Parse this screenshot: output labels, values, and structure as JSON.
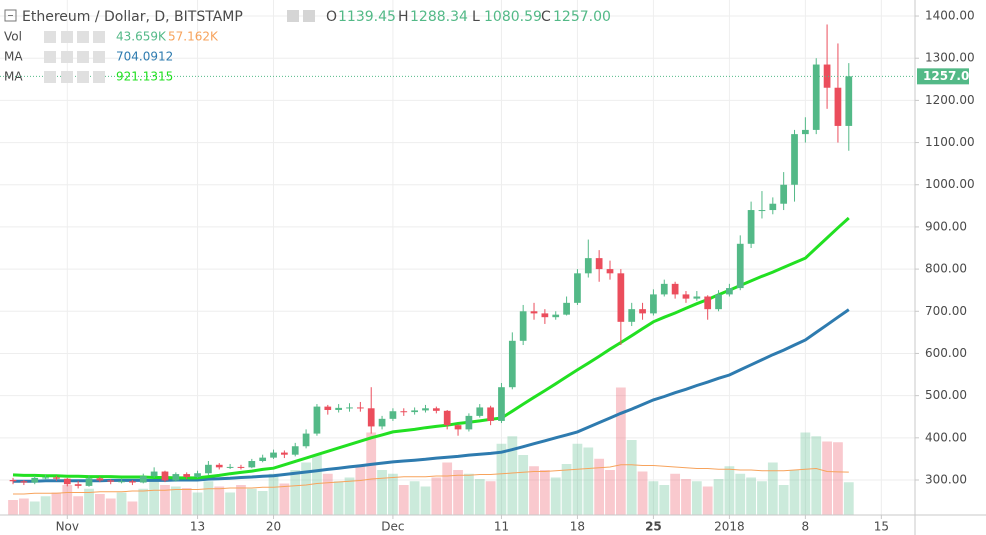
{
  "chart_data": {
    "type": "candlestick",
    "title": "Ethereum / Dollar, D, BITSTAMP",
    "ohlc_prefixes": [
      "O",
      "H",
      "L",
      "C"
    ],
    "close_label": "1257.00",
    "color_up": "#53b987",
    "color_down": "#eb4d5c",
    "open": [
      300,
      297,
      294,
      305,
      306,
      303,
      290,
      286,
      304,
      299,
      296,
      297,
      294,
      309,
      320,
      299,
      314,
      307,
      316,
      336,
      330,
      331,
      330,
      345,
      353,
      365,
      360,
      380,
      410,
      474,
      466,
      471,
      472,
      470,
      427,
      445,
      463,
      461,
      465,
      470,
      464,
      430,
      420,
      452,
      472,
      440,
      520,
      630,
      700,
      695,
      686,
      692,
      720,
      790,
      826,
      800,
      790,
      675,
      705,
      695,
      740,
      765,
      740,
      730,
      735,
      705,
      740,
      755,
      860,
      940,
      940,
      955,
      1000,
      1120,
      1130,
      1285,
      1230,
      1139.45
    ],
    "high": [
      305,
      300,
      310,
      312,
      310,
      305,
      298,
      310,
      308,
      302,
      303,
      300,
      315,
      330,
      322,
      318,
      318,
      322,
      345,
      340,
      338,
      336,
      350,
      360,
      372,
      370,
      388,
      420,
      480,
      478,
      480,
      482,
      485,
      520,
      452,
      470,
      470,
      472,
      478,
      474,
      466,
      432,
      458,
      480,
      476,
      530,
      650,
      715,
      720,
      705,
      700,
      735,
      800,
      870,
      845,
      820,
      800,
      720,
      720,
      752,
      775,
      770,
      748,
      748,
      738,
      750,
      765,
      880,
      960,
      985,
      970,
      1030,
      1130,
      1160,
      1300,
      1380,
      1335,
      1288.34
    ],
    "low": [
      290,
      288,
      290,
      300,
      298,
      285,
      280,
      284,
      295,
      290,
      292,
      288,
      292,
      305,
      295,
      296,
      302,
      305,
      312,
      325,
      326,
      325,
      328,
      342,
      350,
      352,
      356,
      375,
      405,
      455,
      460,
      462,
      462,
      410,
      420,
      440,
      452,
      455,
      460,
      458,
      420,
      405,
      415,
      448,
      430,
      435,
      515,
      620,
      680,
      670,
      680,
      690,
      715,
      780,
      770,
      775,
      620,
      665,
      680,
      690,
      735,
      730,
      720,
      725,
      680,
      700,
      735,
      750,
      850,
      920,
      930,
      940,
      960,
      1100,
      1120,
      1180,
      1100,
      1080.59
    ],
    "close": [
      297,
      294,
      305,
      306,
      303,
      290,
      286,
      304,
      299,
      296,
      297,
      294,
      309,
      320,
      299,
      314,
      307,
      316,
      336,
      330,
      331,
      330,
      345,
      353,
      365,
      360,
      380,
      410,
      474,
      466,
      471,
      472,
      470,
      427,
      445,
      463,
      461,
      465,
      470,
      464,
      430,
      420,
      452,
      472,
      440,
      520,
      630,
      700,
      695,
      686,
      692,
      720,
      790,
      826,
      800,
      790,
      675,
      705,
      695,
      740,
      765,
      740,
      730,
      735,
      705,
      740,
      755,
      860,
      940,
      940,
      955,
      1000,
      1120,
      1130,
      1285,
      1230,
      1139.45,
      1257
    ],
    "ylim": [
      217,
      1438
    ],
    "yticks": [
      {
        "value": 300,
        "label": "300.00"
      },
      {
        "value": 400,
        "label": "400.00"
      },
      {
        "value": 500,
        "label": "500.00"
      },
      {
        "value": 600,
        "label": "600.00"
      },
      {
        "value": 700,
        "label": "700.00"
      },
      {
        "value": 800,
        "label": "800.00"
      },
      {
        "value": 900,
        "label": "900.00"
      },
      {
        "value": 1000,
        "label": "1000.00"
      },
      {
        "value": 1100,
        "label": "1100.00"
      },
      {
        "value": 1200,
        "label": "1200.00"
      },
      {
        "value": 1300,
        "label": "1300.00"
      },
      {
        "value": 1400,
        "label": "1400.00"
      }
    ],
    "xlim": [
      -1.2,
      83.1
    ],
    "xticks": [
      {
        "value": 5,
        "label": "Nov"
      },
      {
        "value": 17,
        "label": "13"
      },
      {
        "value": 24,
        "label": "20"
      },
      {
        "value": 35,
        "label": "Dec"
      },
      {
        "value": 45,
        "label": "11"
      },
      {
        "value": 52,
        "label": "18"
      },
      {
        "value": 59,
        "label": "25"
      },
      {
        "value": 66,
        "label": "2018"
      },
      {
        "value": 73,
        "label": "8"
      },
      {
        "value": 80,
        "label": "15"
      }
    ],
    "grid": true,
    "volume": {
      "name": "Vol",
      "values": [
        20,
        22,
        18,
        25,
        30,
        40,
        25,
        35,
        28,
        22,
        30,
        18,
        35,
        45,
        40,
        38,
        36,
        30,
        45,
        38,
        30,
        40,
        35,
        32,
        55,
        42,
        60,
        70,
        80,
        55,
        45,
        50,
        65,
        110,
        60,
        55,
        40,
        45,
        38,
        50,
        70,
        60,
        55,
        48,
        45,
        95,
        105,
        80,
        65,
        60,
        50,
        68,
        95,
        90,
        75,
        60,
        170,
        100,
        58,
        45,
        40,
        55,
        48,
        45,
        38,
        48,
        65,
        55,
        50,
        45,
        70,
        40,
        60,
        110,
        105,
        98,
        97,
        43.659
      ],
      "value_label": "43.659K",
      "ma": {
        "color": "#f7a35c",
        "value_label": "57.162K",
        "values": [
          28,
          28,
          29,
          29,
          29,
          30,
          30,
          30,
          31,
          31,
          31,
          32,
          32,
          33,
          33,
          34,
          34,
          34,
          35,
          35,
          36,
          36,
          36,
          37,
          37,
          38,
          39,
          40,
          42,
          43,
          44,
          45,
          46,
          48,
          49,
          50,
          51,
          51,
          51,
          52,
          52,
          53,
          53,
          54,
          54,
          55,
          56,
          57,
          58,
          58,
          59,
          60,
          61,
          62,
          63,
          64,
          67,
          67,
          66,
          66,
          65,
          64,
          63,
          62,
          62,
          61,
          61,
          60,
          60,
          59,
          59,
          59,
          60,
          61,
          62,
          58,
          57.5,
          57.162
        ]
      }
    },
    "series": [
      {
        "name": "MA",
        "color": "#2e7baf",
        "values": [
          297,
          297,
          297,
          298,
          298,
          298,
          298,
          298,
          298,
          299,
          299,
          299,
          299,
          299,
          299,
          300,
          300,
          300,
          302,
          303,
          304,
          306,
          307,
          309,
          310,
          313,
          316,
          319,
          322,
          325,
          328,
          331,
          334,
          337,
          340,
          343,
          345,
          347,
          349,
          352,
          354,
          356,
          359,
          361,
          363,
          366,
          372,
          379,
          386,
          393,
          400,
          407,
          414,
          425,
          436,
          447,
          458,
          468,
          479,
          490,
          498,
          507,
          515,
          524,
          532,
          541,
          549,
          561,
          573,
          585,
          597,
          608,
          620,
          632,
          650,
          668,
          686,
          704.0912
        ]
      },
      {
        "name": "MA",
        "color": "#22e022",
        "values": [
          312,
          311,
          311,
          310,
          310,
          309,
          309,
          308,
          308,
          308,
          307,
          307,
          307,
          306,
          306,
          305,
          305,
          305,
          308,
          311,
          315,
          318,
          321,
          325,
          328,
          336,
          344,
          352,
          360,
          368,
          376,
          384,
          392,
          400,
          407,
          414,
          417,
          420,
          424,
          427,
          430,
          434,
          437,
          440,
          444,
          447,
          463,
          480,
          496,
          512,
          528,
          545,
          561,
          577,
          593,
          610,
          626,
          642,
          659,
          675,
          686,
          696,
          707,
          718,
          728,
          739,
          750,
          761,
          772,
          783,
          793,
          804,
          815,
          826,
          850,
          874,
          898,
          921.1315
        ]
      }
    ]
  }
}
